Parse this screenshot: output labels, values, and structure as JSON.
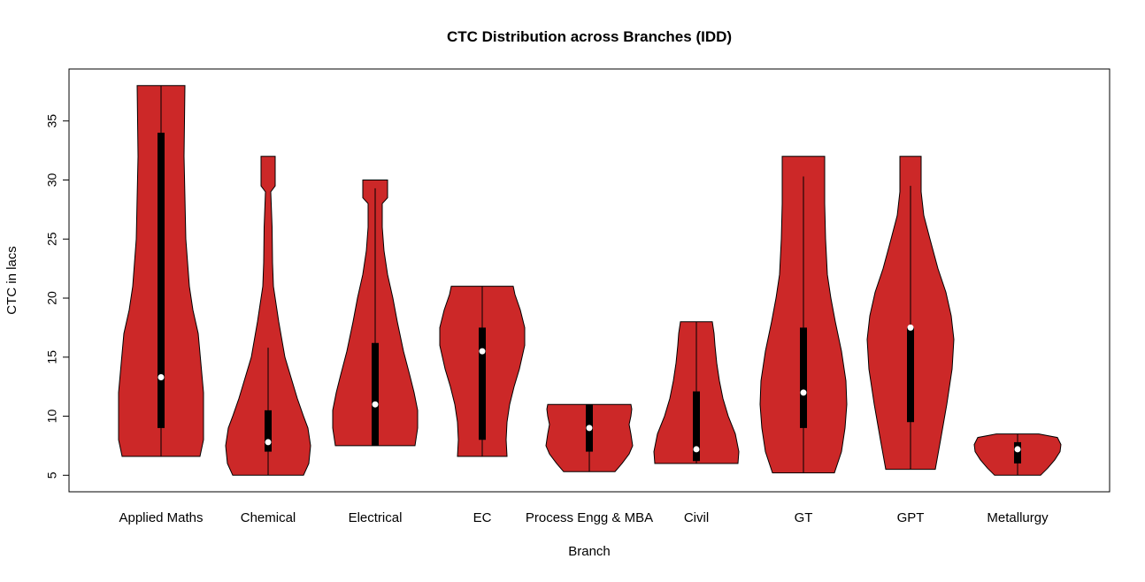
{
  "chart_data": {
    "type": "violin",
    "title": "CTC Distribution across Branches (IDD)",
    "xlabel": "Branch",
    "ylabel": "CTC in lacs",
    "ylim": [
      3.6,
      39.4
    ],
    "yticks": [
      5,
      10,
      15,
      20,
      25,
      30,
      35
    ],
    "fill_color": "#CC2828",
    "grid": false,
    "categories": [
      "Applied Maths",
      "Chemical",
      "Electrical",
      "EC",
      "Process Engg & MBA",
      "Civil",
      "GT",
      "GPT",
      "Metallurgy"
    ],
    "series": [
      {
        "min": 6.6,
        "q1": 9,
        "median": 13.3,
        "q3": 34,
        "whisker_high": 38,
        "max": 38,
        "density": [
          [
            6.6,
            0.88
          ],
          [
            8,
            0.96
          ],
          [
            12,
            0.96
          ],
          [
            14.5,
            0.9
          ],
          [
            17,
            0.84
          ],
          [
            19,
            0.72
          ],
          [
            21,
            0.64
          ],
          [
            25,
            0.56
          ],
          [
            32,
            0.52
          ],
          [
            38,
            0.54
          ]
        ]
      },
      {
        "min": 5,
        "q1": 7,
        "median": 7.8,
        "q3": 10.5,
        "whisker_high": 15.8,
        "max": 32,
        "density": [
          [
            5,
            0.8
          ],
          [
            6,
            0.92
          ],
          [
            7.5,
            0.96
          ],
          [
            9,
            0.9
          ],
          [
            10,
            0.8
          ],
          [
            11.5,
            0.66
          ],
          [
            13,
            0.54
          ],
          [
            15,
            0.38
          ],
          [
            18,
            0.24
          ],
          [
            21,
            0.12
          ],
          [
            23,
            0.1
          ],
          [
            26,
            0.09
          ],
          [
            29,
            0.06
          ],
          [
            29.5,
            0.16
          ],
          [
            32,
            0.16
          ]
        ]
      },
      {
        "min": 7.5,
        "q1": 7.5,
        "median": 11,
        "q3": 16.2,
        "whisker_high": 29.3,
        "max": 30,
        "density": [
          [
            7.5,
            0.9
          ],
          [
            9,
            0.96
          ],
          [
            10.5,
            0.96
          ],
          [
            12,
            0.88
          ],
          [
            13.5,
            0.78
          ],
          [
            15.5,
            0.64
          ],
          [
            18,
            0.5
          ],
          [
            20,
            0.4
          ],
          [
            22,
            0.28
          ],
          [
            24,
            0.2
          ],
          [
            26,
            0.16
          ],
          [
            28,
            0.16
          ],
          [
            28.5,
            0.28
          ],
          [
            30,
            0.28
          ]
        ]
      },
      {
        "min": 6.6,
        "q1": 8,
        "median": 15.5,
        "q3": 17.5,
        "whisker_high": 21,
        "max": 21,
        "density": [
          [
            6.6,
            0.56
          ],
          [
            8,
            0.54
          ],
          [
            9.5,
            0.56
          ],
          [
            11,
            0.62
          ],
          [
            12.5,
            0.72
          ],
          [
            14,
            0.84
          ],
          [
            16,
            0.96
          ],
          [
            17.5,
            0.96
          ],
          [
            19,
            0.86
          ],
          [
            20.3,
            0.74
          ],
          [
            21,
            0.7
          ]
        ]
      },
      {
        "min": 5.3,
        "q1": 7,
        "median": 9,
        "q3": 11,
        "whisker_high": 11,
        "max": 11,
        "density": [
          [
            5.3,
            0.58
          ],
          [
            6,
            0.74
          ],
          [
            6.8,
            0.9
          ],
          [
            7.5,
            0.98
          ],
          [
            8.5,
            0.94
          ],
          [
            9.3,
            0.9
          ],
          [
            10,
            0.94
          ],
          [
            10.6,
            0.96
          ],
          [
            11,
            0.94
          ]
        ]
      },
      {
        "min": 6,
        "q1": 6.2,
        "median": 7.2,
        "q3": 12.1,
        "whisker_high": 18,
        "max": 18,
        "density": [
          [
            6,
            0.94
          ],
          [
            7,
            0.96
          ],
          [
            8.5,
            0.88
          ],
          [
            10,
            0.72
          ],
          [
            11.5,
            0.6
          ],
          [
            13,
            0.52
          ],
          [
            14.5,
            0.46
          ],
          [
            16,
            0.42
          ],
          [
            17,
            0.4
          ],
          [
            18,
            0.36
          ]
        ]
      },
      {
        "min": 5.2,
        "q1": 9,
        "median": 12,
        "q3": 17.5,
        "whisker_high": 30.3,
        "max": 32,
        "density": [
          [
            5.2,
            0.7
          ],
          [
            7,
            0.86
          ],
          [
            9,
            0.94
          ],
          [
            11,
            0.98
          ],
          [
            13,
            0.96
          ],
          [
            15.5,
            0.86
          ],
          [
            18,
            0.72
          ],
          [
            20,
            0.62
          ],
          [
            22,
            0.54
          ],
          [
            25,
            0.5
          ],
          [
            28,
            0.48
          ],
          [
            30.5,
            0.48
          ],
          [
            32,
            0.48
          ]
        ]
      },
      {
        "min": 5.5,
        "q1": 9.5,
        "median": 17.5,
        "q3": 17.5,
        "whisker_high": 29.5,
        "max": 32,
        "density": [
          [
            5.5,
            0.56
          ],
          [
            8,
            0.68
          ],
          [
            11,
            0.82
          ],
          [
            14,
            0.94
          ],
          [
            16.5,
            0.98
          ],
          [
            18.5,
            0.92
          ],
          [
            20.5,
            0.8
          ],
          [
            22.5,
            0.62
          ],
          [
            25,
            0.44
          ],
          [
            27,
            0.3
          ],
          [
            29,
            0.24
          ],
          [
            30.5,
            0.24
          ],
          [
            32,
            0.24
          ]
        ]
      },
      {
        "min": 5,
        "q1": 6,
        "median": 7.2,
        "q3": 7.8,
        "whisker_high": 8.5,
        "max": 8.5,
        "density": [
          [
            5,
            0.52
          ],
          [
            5.6,
            0.68
          ],
          [
            6.3,
            0.84
          ],
          [
            7,
            0.96
          ],
          [
            7.6,
            0.98
          ],
          [
            8.2,
            0.9
          ],
          [
            8.5,
            0.48
          ]
        ]
      }
    ]
  }
}
